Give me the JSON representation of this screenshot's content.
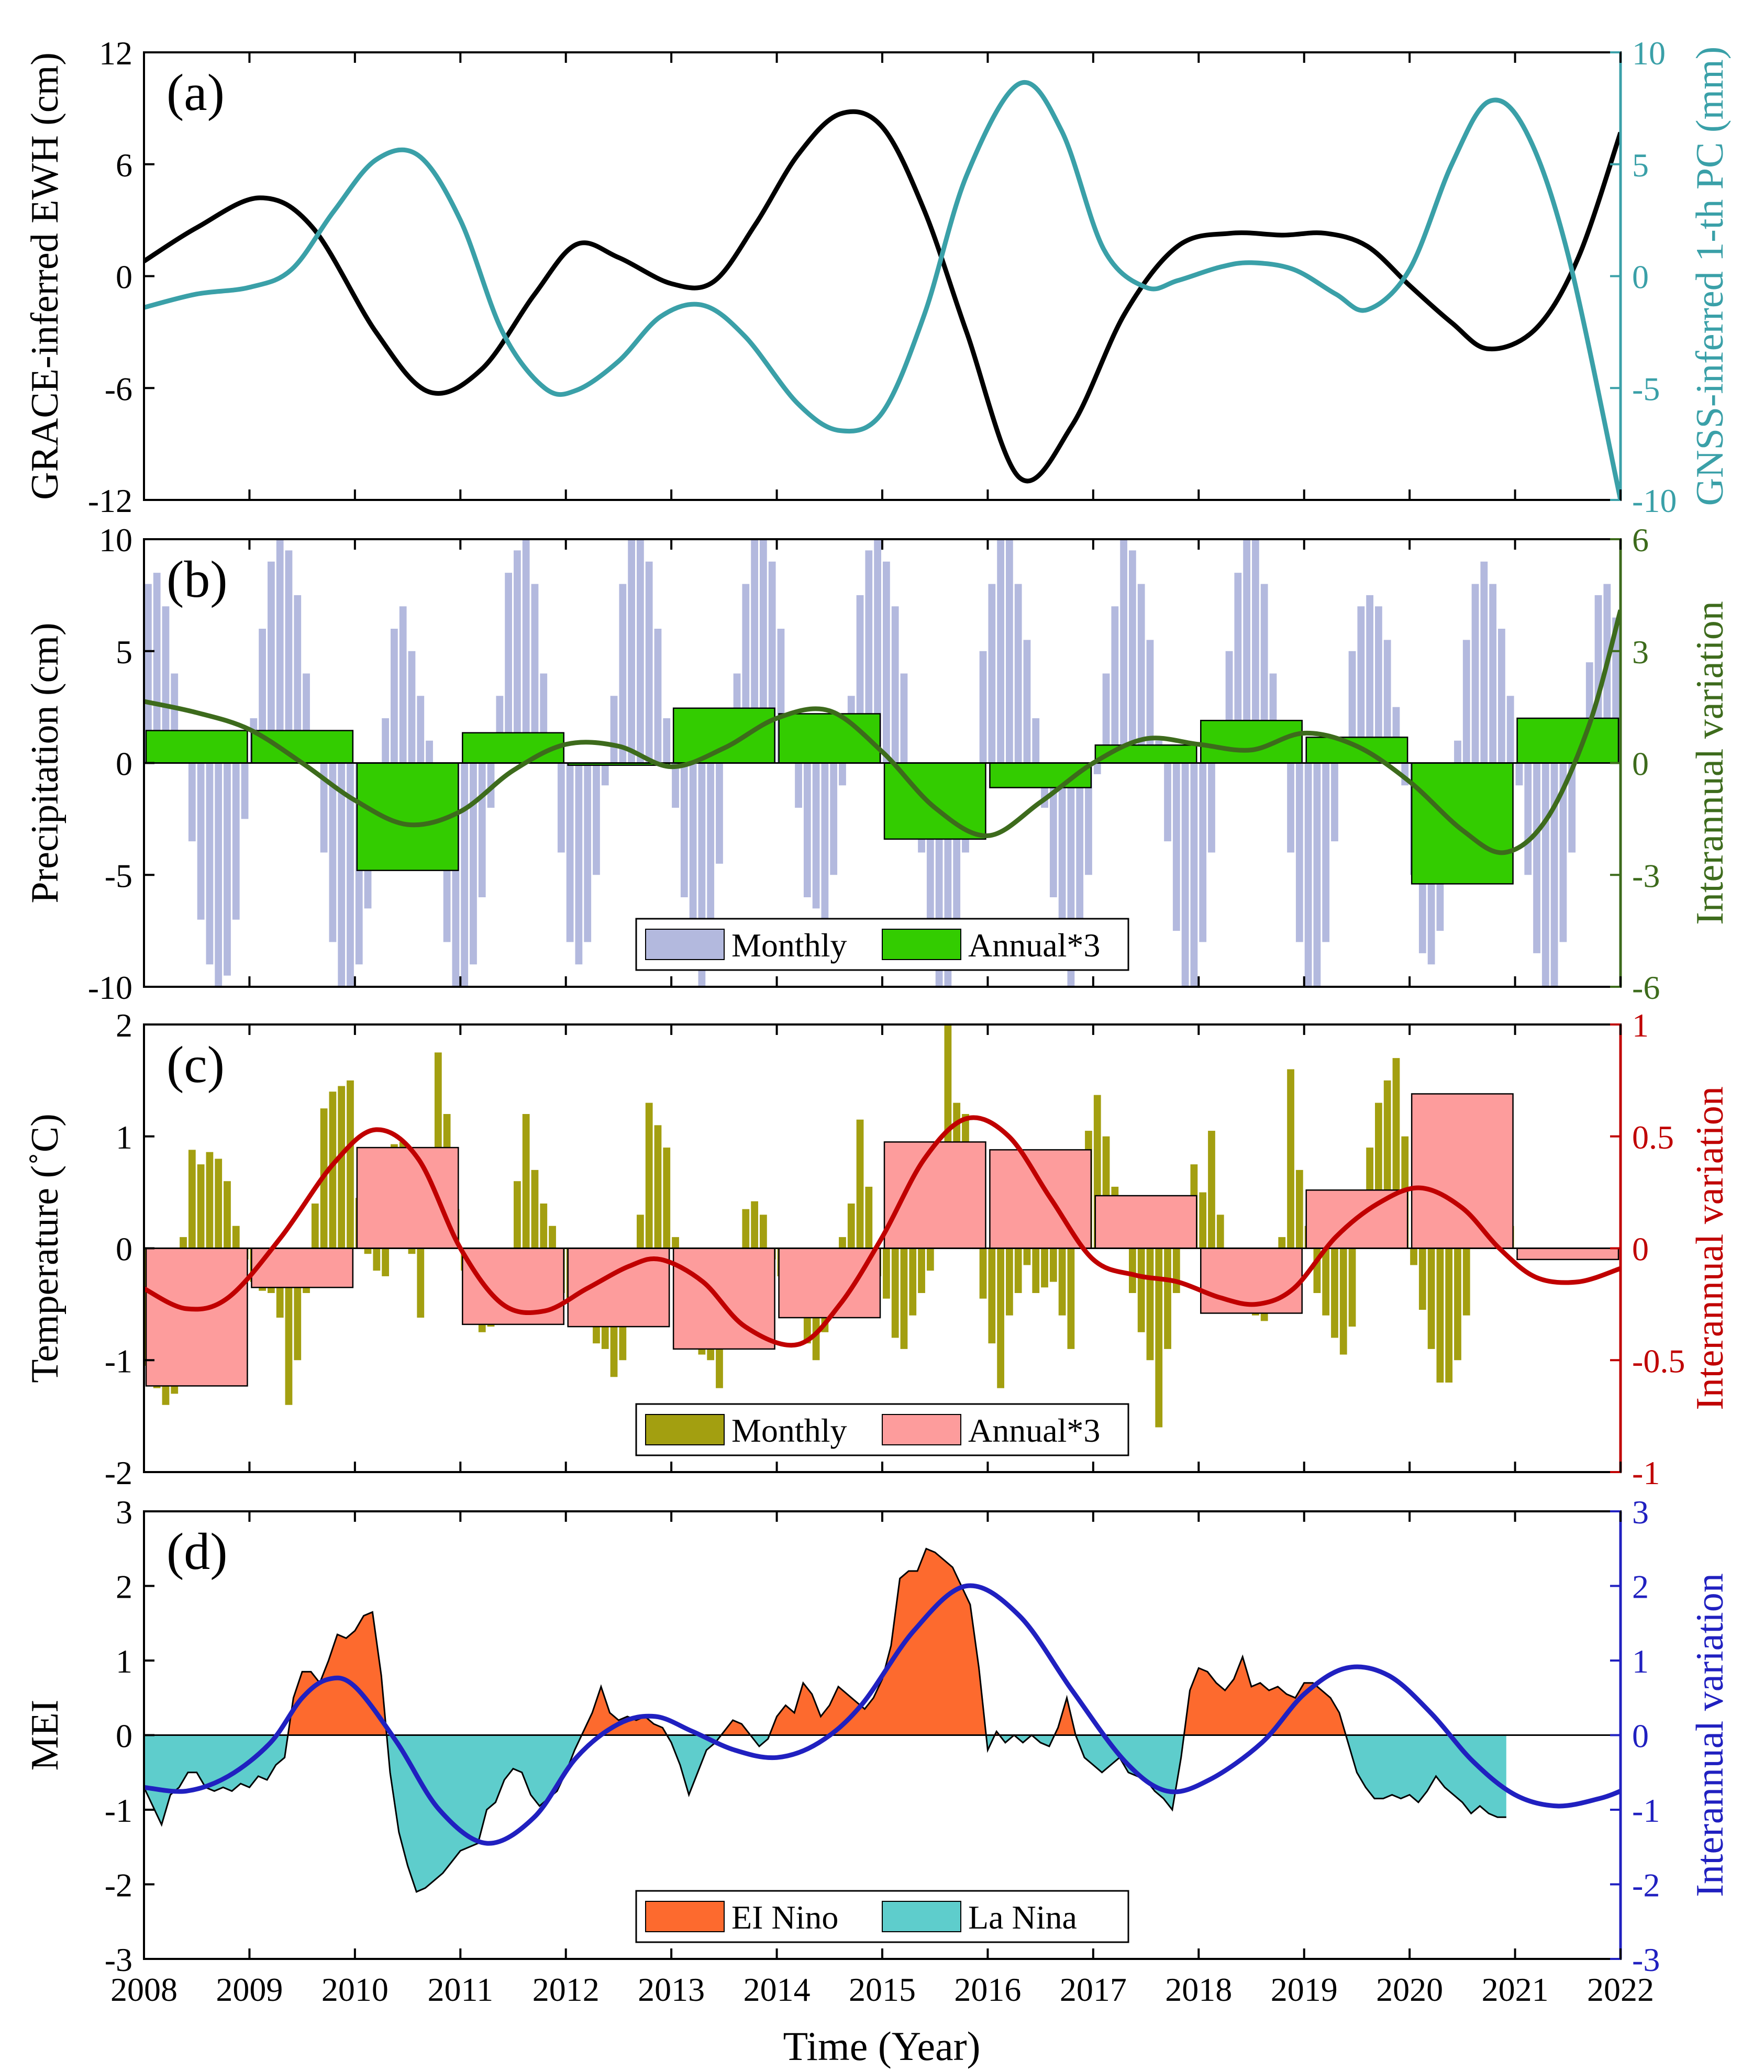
{
  "colors": {
    "ewh": "#000000",
    "gnss": "#3aa0a8",
    "precip_monthly": "#b3b9de",
    "precip_annual": "#33cc00",
    "precip_interannual": "#3d6b1c",
    "temp_monthly": "#a39f10",
    "temp_annual": "#fd9c9c",
    "temp_interannual": "#c00000",
    "elnino": "#fd6a2e",
    "lanina": "#5ecdcc",
    "mei_interannual": "#2020c0"
  },
  "shared_x": {
    "label": "Time (Year)",
    "range": [
      2008,
      2022
    ],
    "ticks": [
      "2008",
      "2009",
      "2010",
      "2011",
      "2012",
      "2013",
      "2014",
      "2015",
      "2016",
      "2017",
      "2018",
      "2019",
      "2020",
      "2021",
      "2022"
    ]
  },
  "chart_data": [
    {
      "panel": "(a)",
      "type": "line",
      "ylabel_left": "GRACE-inferred EWH (cm)",
      "ylabel_right": "GNSS-inferred 1-th PC (mm)",
      "ylim_left": [
        -12,
        12
      ],
      "ylim_right": [
        -10,
        10
      ],
      "yticks_left": [
        "12",
        "6",
        "0",
        "-6",
        "-12"
      ],
      "yticks_right": [
        "10",
        "5",
        "0",
        "-5",
        "-10"
      ],
      "series": [
        {
          "name": "GRACE-inferred EWH",
          "axis": "left",
          "x": [
            2008.0,
            2008.5,
            2009.1,
            2009.6,
            2010.2,
            2010.7,
            2011.2,
            2011.7,
            2012.1,
            2012.5,
            2013.0,
            2013.4,
            2013.8,
            2014.2,
            2014.6,
            2015.0,
            2015.4,
            2015.8,
            2016.3,
            2016.8,
            2017.3,
            2017.8,
            2018.3,
            2018.8,
            2019.2,
            2019.6,
            2020.0,
            2020.4,
            2020.75,
            2021.2,
            2021.6,
            2022.0
          ],
          "y": [
            0.8,
            2.6,
            4.2,
            2.6,
            -3.0,
            -6.2,
            -5.0,
            -1.0,
            1.7,
            1.0,
            -0.4,
            -0.3,
            2.8,
            6.5,
            8.7,
            8.0,
            3.5,
            -3.0,
            -10.8,
            -8.0,
            -2.0,
            1.6,
            2.3,
            2.2,
            2.3,
            1.6,
            -0.5,
            -2.5,
            -3.9,
            -2.8,
            1.0,
            7.7
          ]
        },
        {
          "name": "GNSS-inferred 1-th PC",
          "axis": "right",
          "x": [
            2008.0,
            2008.5,
            2009.0,
            2009.4,
            2009.8,
            2010.2,
            2010.6,
            2011.0,
            2011.4,
            2011.8,
            2012.1,
            2012.5,
            2012.9,
            2013.3,
            2013.7,
            2014.2,
            2014.6,
            2015.0,
            2015.4,
            2015.8,
            2016.3,
            2016.7,
            2017.1,
            2017.5,
            2017.8,
            2018.2,
            2018.5,
            2018.9,
            2019.3,
            2019.6,
            2020.0,
            2020.4,
            2020.75,
            2021.1,
            2021.5,
            2022.0
          ],
          "y": [
            -1.4,
            -0.8,
            -0.5,
            0.3,
            2.9,
            5.2,
            5.4,
            2.5,
            -2.5,
            -5.0,
            -5.1,
            -3.8,
            -1.8,
            -1.3,
            -2.7,
            -5.7,
            -6.9,
            -6.1,
            -1.7,
            4.5,
            8.6,
            6.5,
            1.2,
            -0.5,
            -0.2,
            0.4,
            0.6,
            0.3,
            -0.8,
            -1.5,
            0.3,
            5.0,
            7.8,
            6.5,
            1.0,
            -10.0
          ]
        }
      ]
    },
    {
      "panel": "(b)",
      "type": "bar",
      "ylabel_left": "Precipitation (cm)",
      "ylabel_right": "Interannual variation",
      "ylim_left": [
        -10,
        10
      ],
      "ylim_right": [
        -6,
        6
      ],
      "yticks_left": [
        "10",
        "5",
        "0",
        "-5",
        "-10"
      ],
      "yticks_right": [
        "6",
        "3",
        "0",
        "-3",
        "-6"
      ],
      "legend": {
        "placement": "bottom-center",
        "entries": [
          "Monthly",
          "Annual*3"
        ]
      },
      "monthly": {
        "name": "Monthly",
        "start": 2008.0,
        "step_months": 1,
        "amplitude": 9,
        "phase_year": 0.95,
        "values": [
          8.0,
          8.5,
          7.0,
          4.0,
          0.5,
          -3.5,
          -7.0,
          -9.0,
          -10.0,
          -9.5,
          -7.0,
          -2.5,
          2.0,
          6.0,
          9.0,
          10.0,
          9.5,
          7.5,
          4.0,
          0.0,
          -4.0,
          -8.0,
          -10.0,
          -10.0,
          -9.0,
          -6.5,
          -2.0,
          2.0,
          6.0,
          7.0,
          5.0,
          3.0,
          1.0,
          -4.0,
          -8.0,
          -10.0,
          -10.0,
          -9.0,
          -6.0,
          -2.0,
          3.0,
          8.5,
          9.5,
          10.0,
          8.0,
          4.0,
          0.0,
          -4.0,
          -8.0,
          -9.0,
          -8.0,
          -5.0,
          -1.0,
          3.0,
          8.0,
          10.0,
          10.0,
          9.0,
          6.0,
          2.0,
          -2.0,
          -6.0,
          -9.0,
          -10.0,
          -8.0,
          -4.5,
          0.0,
          4.0,
          8.0,
          10.0,
          10.0,
          9.0,
          6.0,
          2.0,
          -2.0,
          -6.0,
          -6.5,
          -7.0,
          -5.0,
          -1.0,
          3.0,
          7.5,
          9.5,
          10.0,
          9.0,
          7.0,
          4.0,
          0.0,
          -4.0,
          -8.0,
          -10.0,
          -10.0,
          -8.0,
          -4.0,
          0.0,
          5.0,
          8.0,
          10.0,
          10.0,
          8.0,
          5.5,
          2.0,
          -2.0,
          -6.0,
          -9.0,
          -10.0,
          -9.0,
          -5.0,
          -0.5,
          4.0,
          7.0,
          10.0,
          9.5,
          8.0,
          5.5,
          1.0,
          -3.5,
          -7.5,
          -10.0,
          -10.0,
          -8.0,
          -4.0,
          0.5,
          5.0,
          8.5,
          10.0,
          10.0,
          8.0,
          4.0,
          0.0,
          -4.0,
          -8.0,
          -10.0,
          -10.0,
          -8.0,
          -3.5,
          1.0,
          5.0,
          7.0,
          7.5,
          7.0,
          5.5,
          2.5,
          -1.0,
          -5.0,
          -8.5,
          -9.0,
          -7.5,
          -3.0,
          1.0,
          5.5,
          8.0,
          9.0,
          8.0,
          6.0,
          3.0,
          -1.0,
          -5.0,
          -8.5,
          -10.0,
          -10.0,
          -8.0,
          -4.0,
          0.5,
          4.5,
          7.5,
          8.0,
          6.5,
          4.0,
          1.0,
          -3.0,
          -7.0,
          -10.0,
          -10.0,
          -8.5,
          -4.5,
          0.5,
          5.0,
          8.5,
          10.0,
          9.0,
          7.0,
          4.0,
          0.0,
          -4.0,
          -8.0,
          -10.0,
          -9.0,
          -6.0,
          -2.0
        ]
      },
      "annual": {
        "name": "Annual*3",
        "x_start": [
          2008,
          2009,
          2010,
          2011,
          2012,
          2013,
          2014,
          2015,
          2016,
          2017,
          2018,
          2019,
          2020,
          2021
        ],
        "values": [
          1.45,
          1.45,
          -4.8,
          1.35,
          -0.1,
          2.45,
          2.2,
          -3.4,
          -1.1,
          0.8,
          1.9,
          1.15,
          -5.4,
          2.0
        ]
      },
      "interannual": {
        "name": "Interannual variation",
        "axis": "right",
        "x": [
          2008.0,
          2008.5,
          2009.0,
          2009.5,
          2010.0,
          2010.5,
          2011.0,
          2011.5,
          2012.0,
          2012.5,
          2013.0,
          2013.5,
          2014.0,
          2014.5,
          2015.0,
          2015.5,
          2016.0,
          2016.5,
          2017.0,
          2017.5,
          2018.0,
          2018.5,
          2019.0,
          2019.5,
          2020.0,
          2020.5,
          2020.9,
          2021.3,
          2021.7,
          2022.0
        ],
        "y": [
          1.65,
          1.35,
          0.9,
          0.0,
          -1.0,
          -1.65,
          -1.3,
          -0.2,
          0.5,
          0.45,
          -0.1,
          0.4,
          1.2,
          1.4,
          0.3,
          -1.2,
          -1.95,
          -1.05,
          0.0,
          0.65,
          0.5,
          0.35,
          0.8,
          0.45,
          -0.5,
          -1.8,
          -2.4,
          -1.5,
          1.0,
          4.1
        ]
      }
    },
    {
      "panel": "(c)",
      "type": "bar",
      "ylabel_left": "Temperature (˚C)",
      "ylabel_right": "Interannual variation",
      "ylim_left": [
        -2,
        2
      ],
      "ylim_right": [
        -1,
        1
      ],
      "yticks_left": [
        "2",
        "1",
        "0",
        "-1",
        "-2"
      ],
      "yticks_right": [
        "1",
        "0.5",
        "0",
        "-0.5",
        "-1"
      ],
      "legend": {
        "placement": "bottom-center",
        "entries": [
          "Monthly",
          "Annual*3"
        ]
      },
      "monthly": {
        "name": "Monthly",
        "start": 2008.0,
        "step_months": 1,
        "values": [
          -1.05,
          -1.25,
          -1.4,
          -1.3,
          0.1,
          0.88,
          0.75,
          0.86,
          0.8,
          0.6,
          0.2,
          -0.1,
          -0.3,
          -0.38,
          -0.4,
          -0.62,
          -1.4,
          -1.0,
          -0.4,
          0.4,
          1.25,
          1.4,
          1.45,
          1.5,
          0.45,
          -0.05,
          -0.2,
          -0.25,
          0.93,
          0.95,
          -0.05,
          -0.62,
          0.1,
          1.75,
          1.2,
          0.35,
          -0.2,
          -0.6,
          -0.75,
          -0.7,
          -0.35,
          -0.3,
          0.6,
          1.2,
          0.7,
          0.4,
          0.2,
          -0.4,
          -0.45,
          -0.55,
          -0.6,
          -0.85,
          -0.9,
          -1.15,
          -1.0,
          -0.7,
          0.3,
          1.3,
          1.1,
          0.9,
          0.1,
          -0.1,
          -0.7,
          -0.95,
          -1.0,
          -1.25,
          -0.8,
          -0.4,
          0.35,
          0.42,
          0.3,
          -0.1,
          -0.25,
          -0.4,
          -0.55,
          -0.85,
          -1.0,
          -0.75,
          -0.4,
          0.1,
          0.4,
          1.15,
          0.55,
          -0.25,
          -0.45,
          -0.8,
          -0.9,
          -0.6,
          -0.4,
          -0.2,
          0.5,
          2.0,
          1.3,
          1.2,
          0.4,
          -0.45,
          -0.85,
          -1.25,
          -0.6,
          -0.4,
          -0.15,
          -0.4,
          -0.35,
          -0.3,
          -0.6,
          -0.9,
          0.45,
          1.05,
          1.37,
          1.0,
          0.55,
          0.3,
          -0.4,
          -0.75,
          -1.0,
          -1.6,
          -0.9,
          -0.4,
          0.3,
          0.75,
          0.5,
          1.05,
          0.3,
          -0.1,
          -0.3,
          -0.55,
          -0.6,
          -0.65,
          -0.2,
          0.1,
          1.6,
          0.7,
          0.2,
          -0.4,
          -0.6,
          -0.8,
          -0.95,
          -0.7,
          0.3,
          0.9,
          1.3,
          1.5,
          1.7,
          1.0,
          -0.15,
          -0.55,
          -0.9,
          -1.2,
          -1.2,
          -1.0,
          -0.6,
          0.3,
          0.5,
          1.0,
          1.05,
          0.2
        ]
      },
      "annual": {
        "name": "Annual*3",
        "x_start": [
          2008,
          2009,
          2010,
          2011,
          2012,
          2013,
          2014,
          2015,
          2016,
          2017,
          2018,
          2019,
          2020,
          2021
        ],
        "values": [
          -1.23,
          -0.35,
          0.9,
          -0.68,
          -0.7,
          -0.9,
          -0.62,
          0.95,
          0.88,
          0.47,
          -0.58,
          0.52,
          1.38,
          -0.1
        ]
      },
      "interannual": {
        "name": "Interannual variation",
        "axis": "right",
        "x": [
          2008.0,
          2008.4,
          2008.8,
          2009.3,
          2009.8,
          2010.2,
          2010.6,
          2011.0,
          2011.4,
          2011.8,
          2012.2,
          2012.6,
          2012.9,
          2013.3,
          2013.7,
          2014.2,
          2014.6,
          2015.0,
          2015.4,
          2015.8,
          2016.2,
          2016.6,
          2017.0,
          2017.4,
          2017.8,
          2018.2,
          2018.55,
          2018.9,
          2019.3,
          2019.7,
          2020.1,
          2020.5,
          2020.85,
          2021.2,
          2021.6,
          2022.0
        ],
        "y": [
          -0.18,
          -0.27,
          -0.22,
          0.05,
          0.38,
          0.53,
          0.4,
          0.0,
          -0.25,
          -0.28,
          -0.18,
          -0.08,
          -0.05,
          -0.15,
          -0.35,
          -0.43,
          -0.25,
          0.05,
          0.4,
          0.58,
          0.5,
          0.22,
          -0.05,
          -0.12,
          -0.15,
          -0.22,
          -0.25,
          -0.18,
          0.05,
          0.2,
          0.27,
          0.18,
          0.0,
          -0.13,
          -0.15,
          -0.09
        ]
      }
    },
    {
      "panel": "(d)",
      "type": "area",
      "ylabel_left": "MEI",
      "ylabel_right": "Interannual variation",
      "ylim_left": [
        -3,
        3
      ],
      "ylim_right": [
        -3,
        3
      ],
      "yticks_left": [
        "3",
        "2",
        "1",
        "0",
        "-1",
        "-2",
        "-3"
      ],
      "yticks_right": [
        "3",
        "2",
        "1",
        "0",
        "-1",
        "-2",
        "-3"
      ],
      "legend": {
        "placement": "bottom-center",
        "entries": [
          "EI Nino",
          "La Nina"
        ]
      },
      "mei": {
        "name": "MEI",
        "start": 2008.0,
        "step_months": 1,
        "values": [
          -0.7,
          -0.95,
          -1.2,
          -0.8,
          -0.7,
          -0.5,
          -0.5,
          -0.7,
          -0.75,
          -0.7,
          -0.75,
          -0.65,
          -0.7,
          -0.55,
          -0.6,
          -0.4,
          -0.3,
          0.5,
          0.85,
          0.85,
          0.7,
          1.0,
          1.35,
          1.3,
          1.4,
          1.6,
          1.65,
          0.8,
          -0.5,
          -1.3,
          -1.75,
          -2.1,
          -2.05,
          -1.95,
          -1.85,
          -1.7,
          -1.55,
          -1.5,
          -1.45,
          -1.0,
          -0.9,
          -0.6,
          -0.45,
          -0.5,
          -0.8,
          -0.95,
          -0.85,
          -0.75,
          -0.5,
          -0.2,
          0.05,
          0.3,
          0.65,
          0.3,
          0.2,
          0.25,
          0.2,
          0.25,
          0.15,
          0.1,
          -0.1,
          -0.4,
          -0.8,
          -0.5,
          -0.2,
          -0.1,
          0.05,
          0.2,
          0.15,
          0.0,
          -0.15,
          -0.05,
          0.25,
          0.4,
          0.3,
          0.7,
          0.55,
          0.25,
          0.4,
          0.65,
          0.55,
          0.45,
          0.35,
          0.5,
          0.75,
          1.2,
          2.1,
          2.2,
          2.2,
          2.5,
          2.45,
          2.35,
          2.25,
          2.0,
          1.75,
          0.9,
          -0.2,
          0.05,
          -0.1,
          0.0,
          -0.1,
          0.0,
          -0.1,
          -0.15,
          0.1,
          0.5,
          0.0,
          -0.3,
          -0.4,
          -0.5,
          -0.4,
          -0.3,
          -0.5,
          -0.55,
          -0.6,
          -0.75,
          -0.85,
          -1.0,
          -0.3,
          0.6,
          0.9,
          0.85,
          0.7,
          0.6,
          0.75,
          1.05,
          0.65,
          0.7,
          0.6,
          0.65,
          0.55,
          0.5,
          0.7,
          0.7,
          0.6,
          0.5,
          0.3,
          -0.1,
          -0.5,
          -0.7,
          -0.85,
          -0.85,
          -0.8,
          -0.85,
          -0.8,
          -0.9,
          -0.75,
          -0.55,
          -0.7,
          -0.8,
          -0.9,
          -1.05,
          -0.95,
          -1.05,
          -1.1,
          -1.1
        ]
      },
      "interannual": {
        "name": "Interannual variation",
        "axis": "right",
        "x": [
          2008.0,
          2008.4,
          2008.8,
          2009.2,
          2009.5,
          2009.75,
          2010.0,
          2010.4,
          2010.8,
          2011.25,
          2011.7,
          2012.1,
          2012.5,
          2012.85,
          2013.2,
          2013.6,
          2014.0,
          2014.4,
          2014.8,
          2015.3,
          2015.8,
          2016.3,
          2016.8,
          2017.3,
          2017.7,
          2018.1,
          2018.6,
          2019.0,
          2019.4,
          2019.8,
          2020.2,
          2020.6,
          2021.0,
          2021.4,
          2021.8,
          2022.0
        ],
        "y": [
          -0.7,
          -0.75,
          -0.55,
          -0.1,
          0.5,
          0.75,
          0.65,
          -0.1,
          -1.0,
          -1.45,
          -1.1,
          -0.3,
          0.15,
          0.25,
          0.05,
          -0.2,
          -0.3,
          -0.1,
          0.4,
          1.4,
          2.0,
          1.6,
          0.6,
          -0.35,
          -0.75,
          -0.6,
          -0.1,
          0.55,
          0.9,
          0.8,
          0.3,
          -0.35,
          -0.8,
          -0.95,
          -0.85,
          -0.75
        ]
      }
    }
  ]
}
